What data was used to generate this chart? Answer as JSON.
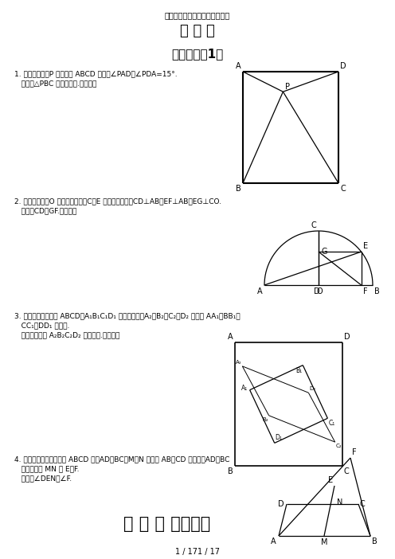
{
  "title1": "初三数学重点难点几何题及答案",
  "title2": "压 轴 题",
  "section1": "经典难题（1）",
  "q1_text1": "1. 已知：如图，P 是正方形 ABCD 内点，∠PAD＝∠PDA=15°.",
  "q1_text2": "   求证：△PBC 是正三角形.（初二）",
  "q2_text1": "2. 已知：如图，O 是半圆的圆心，C、E 是圆上的两点，CD⊥AB，EF⊥AB，EG⊥CO.",
  "q2_text2": "   求证：CD＝GF.（初二）",
  "q3_text1": "3. 如图，已知四边形 ABCD、A₁B₁C₁D₁ 都是正方形，A₂、B₂、C₂、D₂ 分别是 AA₁、BB₁、",
  "q3_text2": "   CC₁、DD₁ 的中点.",
  "q3_text3": "   求证：四边形 A₂B₂C₂D₂ 是正方形.（初二）",
  "q4_text1": "4. 已知：如图，在四边形 ABCD 中，AD＝BC，M、N 分别是 AB、CD 的中点，AD、BC",
  "q4_text2": "   的延长线交 MN 于 E、F.",
  "q4_text3": "   求证：∠DEN＝∠F.",
  "section2": "经 典 难 题（二）",
  "footer": "1 / 171 / 17",
  "bg_color": "#ffffff",
  "text_color": "#000000"
}
